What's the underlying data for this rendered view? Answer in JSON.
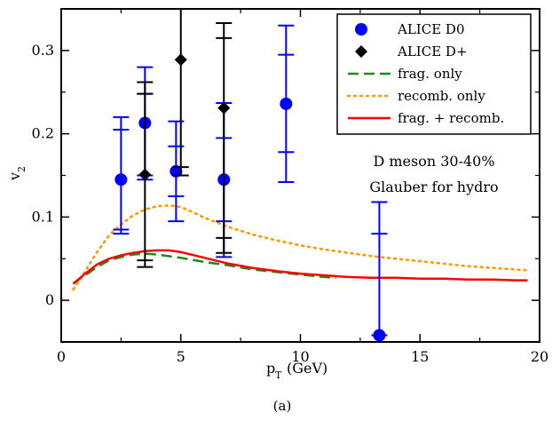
{
  "chart_data": {
    "type": "scatter",
    "caption": "(a)",
    "xlabel_main": "p",
    "xlabel_sub": "T",
    "xlabel_unit": "(GeV)",
    "ylabel_main": "v",
    "ylabel_sub": "2",
    "xlim": [
      0,
      20
    ],
    "ylim": [
      -0.05,
      0.35
    ],
    "x_ticks": [
      0,
      5,
      10,
      15,
      20
    ],
    "y_ticks": [
      0,
      0.1,
      0.2,
      0.3
    ],
    "annotation": [
      "D meson 30-40%",
      "Glauber for hydro"
    ],
    "legend_position": "top-right",
    "series": [
      {
        "name": "ALICE D0",
        "kind": "points",
        "marker": "circle",
        "color": "#0000ff",
        "points": [
          {
            "x": 2.5,
            "y": 0.145,
            "err_stat": [
              0.085,
              0.205
            ],
            "err_tot": [
              0.08,
              0.22
            ]
          },
          {
            "x": 3.5,
            "y": 0.213,
            "err_stat": [
              0.15,
              0.248
            ],
            "err_tot": [
              0.145,
              0.28
            ]
          },
          {
            "x": 4.8,
            "y": 0.155,
            "err_stat": [
              0.125,
              0.185
            ],
            "err_tot": [
              0.095,
              0.215
            ]
          },
          {
            "x": 6.8,
            "y": 0.145,
            "err_stat": [
              0.095,
              0.195
            ],
            "err_tot": [
              0.052,
              0.237
            ]
          },
          {
            "x": 9.4,
            "y": 0.236,
            "err_stat": [
              0.178,
              0.295
            ],
            "err_tot": [
              0.142,
              0.33
            ]
          },
          {
            "x": 13.3,
            "y": -0.042,
            "err_stat": [
              -0.042,
              0.08
            ],
            "err_tot": [
              -0.042,
              0.118
            ]
          }
        ]
      },
      {
        "name": "ALICE D+",
        "kind": "points",
        "marker": "diamond",
        "color": "#000000",
        "points": [
          {
            "x": 3.5,
            "y": 0.151,
            "err_stat": [
              0.048,
              0.248
            ],
            "err_tot": [
              0.04,
              0.262
            ]
          },
          {
            "x": 5.0,
            "y": 0.289,
            "err_stat": [
              0.16,
              0.35
            ],
            "err_tot": [
              0.15,
              0.35
            ]
          },
          {
            "x": 6.8,
            "y": 0.231,
            "err_stat": [
              0.075,
              0.315
            ],
            "err_tot": [
              0.057,
              0.333
            ]
          }
        ]
      },
      {
        "name": "frag. only",
        "kind": "line",
        "style": "dashed",
        "color": "#1e8b1e",
        "x": [
          0.5,
          1.0,
          1.5,
          2.0,
          2.5,
          3.0,
          3.5,
          4.0,
          5.0,
          6.0,
          7.0,
          8.0,
          9.0,
          10.0,
          11.0,
          11.5
        ],
        "y": [
          0.02,
          0.03,
          0.04,
          0.048,
          0.052,
          0.055,
          0.056,
          0.055,
          0.051,
          0.046,
          0.042,
          0.037,
          0.034,
          0.031,
          0.028,
          0.027
        ]
      },
      {
        "name": "recomb. only",
        "kind": "line",
        "style": "dotted",
        "color": "#ff9900",
        "x": [
          0.5,
          1.0,
          1.5,
          2.0,
          2.5,
          3.0,
          3.5,
          4.0,
          4.5,
          5.0,
          5.5,
          6.0,
          7.0,
          8.0,
          9.0,
          10.0,
          11.0,
          12.0,
          13.0,
          14.0,
          15.0,
          16.0,
          17.0,
          18.0,
          19.0,
          19.5
        ],
        "y": [
          0.013,
          0.035,
          0.058,
          0.078,
          0.091,
          0.102,
          0.109,
          0.113,
          0.114,
          0.112,
          0.106,
          0.099,
          0.088,
          0.079,
          0.072,
          0.066,
          0.061,
          0.057,
          0.053,
          0.05,
          0.047,
          0.044,
          0.041,
          0.039,
          0.037,
          0.036
        ]
      },
      {
        "name": "frag. + recomb.",
        "kind": "line",
        "style": "solid",
        "color": "#ff0000",
        "x": [
          0.5,
          1.0,
          1.5,
          2.0,
          2.5,
          3.0,
          3.5,
          4.0,
          4.5,
          5.0,
          6.0,
          7.0,
          8.0,
          9.0,
          10.0,
          11.0,
          12.0,
          13.0,
          14.0,
          15.0,
          16.0,
          17.0,
          18.0,
          19.0,
          19.5
        ],
        "y": [
          0.02,
          0.032,
          0.043,
          0.05,
          0.054,
          0.057,
          0.059,
          0.06,
          0.06,
          0.058,
          0.051,
          0.044,
          0.039,
          0.035,
          0.032,
          0.03,
          0.028,
          0.027,
          0.027,
          0.026,
          0.026,
          0.025,
          0.025,
          0.024,
          0.024
        ]
      }
    ]
  }
}
